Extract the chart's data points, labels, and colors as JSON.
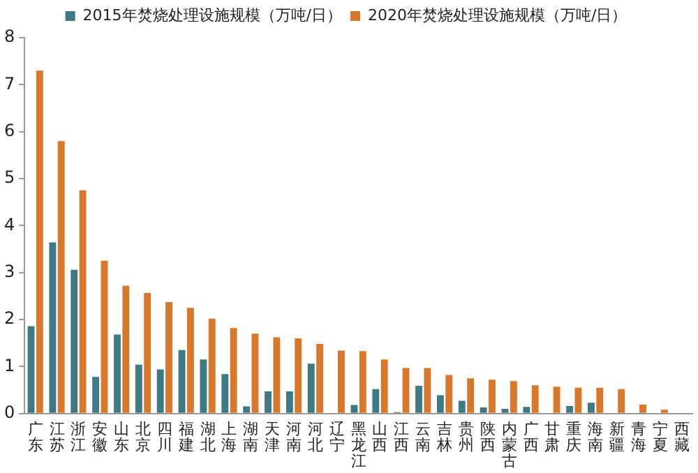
{
  "chart_data": {
    "type": "bar",
    "categories": [
      "广东",
      "江苏",
      "浙江",
      "安徽",
      "山东",
      "北京",
      "四川",
      "福建",
      "湖北",
      "上海",
      "湖南",
      "天津",
      "河南",
      "河北",
      "辽宁",
      "黑龙江",
      "山西",
      "江西",
      "云南",
      "吉林",
      "贵州",
      "陕西",
      "内蒙古",
      "广西",
      "甘肃",
      "重庆",
      "海南",
      "新疆",
      "青海",
      "宁夏",
      "西藏"
    ],
    "series": [
      {
        "name": "2015年焚烧处理设施规模（万吨/日）",
        "color": "#3d7a86",
        "values": [
          1.86,
          3.64,
          3.06,
          0.78,
          1.68,
          1.04,
          0.94,
          1.35,
          1.15,
          0.84,
          0.15,
          0.47,
          0.47,
          1.06,
          null,
          0.18,
          0.52,
          0.03,
          0.59,
          0.39,
          0.27,
          0.13,
          0.1,
          0.14,
          null,
          0.16,
          0.23,
          null,
          null,
          null,
          null
        ]
      },
      {
        "name": "2020年焚烧处理设施规模（万吨/日）",
        "color": "#d9782a",
        "values": [
          7.3,
          5.8,
          4.75,
          3.25,
          2.72,
          2.57,
          2.37,
          2.25,
          2.02,
          1.82,
          1.7,
          1.62,
          1.6,
          1.48,
          1.34,
          1.33,
          1.15,
          0.97,
          0.97,
          0.82,
          0.75,
          0.72,
          0.69,
          0.6,
          0.57,
          0.55,
          0.55,
          0.52,
          0.19,
          0.08,
          null
        ]
      }
    ],
    "ylim": [
      0,
      8
    ],
    "yticks": [
      0,
      1,
      2,
      3,
      4,
      5,
      6,
      7,
      8
    ],
    "grid": false,
    "legend": "top"
  }
}
